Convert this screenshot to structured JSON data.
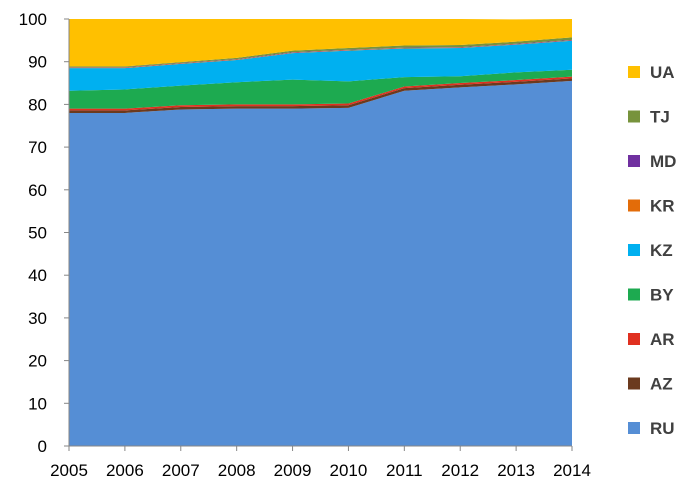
{
  "chart_data": {
    "type": "area",
    "stacked": true,
    "x": [
      2005,
      2006,
      2007,
      2008,
      2009,
      2010,
      2011,
      2012,
      2013,
      2014
    ],
    "ylim": [
      0,
      100
    ],
    "yticks": [
      0,
      10,
      20,
      30,
      40,
      50,
      60,
      70,
      80,
      90,
      100
    ],
    "grid": false,
    "legend_position": "right",
    "series": [
      {
        "name": "RU",
        "color": "#558ED5",
        "values": [
          78.0,
          78.0,
          78.8,
          79.0,
          79.0,
          79.2,
          83.2,
          84.0,
          84.7,
          85.5
        ]
      },
      {
        "name": "AZ",
        "color": "#6B3A1E",
        "values": [
          0.6,
          0.6,
          0.6,
          0.6,
          0.6,
          0.6,
          0.6,
          0.6,
          0.6,
          0.6
        ]
      },
      {
        "name": "AR",
        "color": "#E03020",
        "values": [
          0.4,
          0.4,
          0.4,
          0.4,
          0.4,
          0.4,
          0.4,
          0.4,
          0.4,
          0.4
        ]
      },
      {
        "name": "BY",
        "color": "#1DAA50",
        "values": [
          4.2,
          4.5,
          4.6,
          5.2,
          5.8,
          5.2,
          2.2,
          1.6,
          1.8,
          1.6
        ]
      },
      {
        "name": "KZ",
        "color": "#00B0F0",
        "values": [
          5.3,
          5.0,
          5.1,
          5.2,
          6.2,
          7.2,
          6.7,
          6.6,
          6.5,
          6.8
        ]
      },
      {
        "name": "KR",
        "color": "#E36C09",
        "values": [
          0.1,
          0.1,
          0.1,
          0.1,
          0.1,
          0.1,
          0.1,
          0.1,
          0.1,
          0.1
        ]
      },
      {
        "name": "MD",
        "color": "#7030A0",
        "values": [
          0.1,
          0.1,
          0.1,
          0.1,
          0.1,
          0.1,
          0.1,
          0.1,
          0.1,
          0.1
        ]
      },
      {
        "name": "TJ",
        "color": "#77933C",
        "values": [
          0.2,
          0.2,
          0.2,
          0.3,
          0.4,
          0.4,
          0.5,
          0.5,
          0.5,
          0.6
        ]
      },
      {
        "name": "UA",
        "color": "#FFC000",
        "values": [
          11.1,
          11.1,
          10.3,
          9.6,
          7.4,
          6.8,
          6.2,
          6.1,
          5.2,
          4.3
        ]
      }
    ],
    "legend_order": [
      "UA",
      "TJ",
      "MD",
      "KR",
      "KZ",
      "BY",
      "AR",
      "AZ",
      "RU"
    ]
  }
}
